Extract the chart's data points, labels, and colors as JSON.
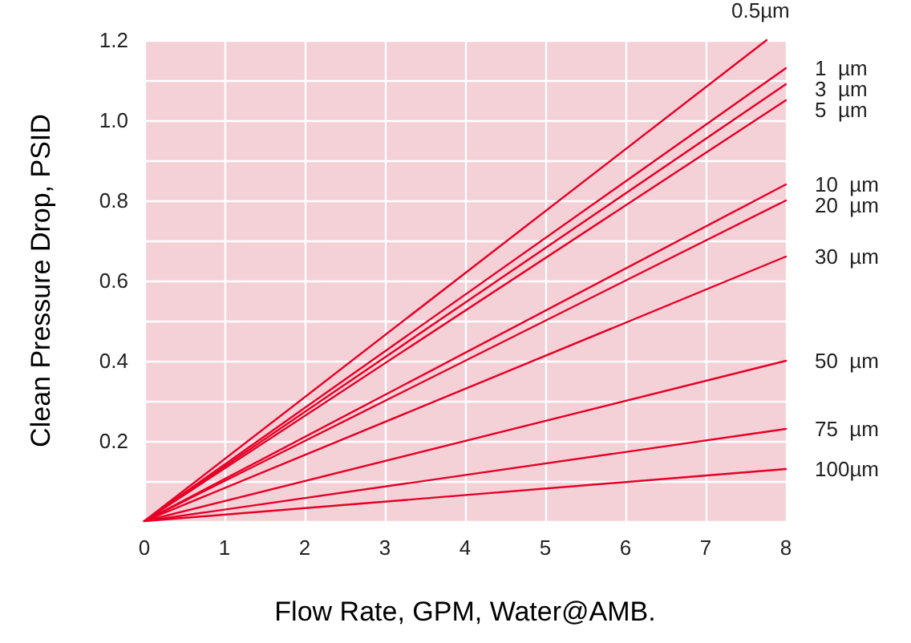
{
  "chart_data": {
    "type": "line",
    "xlabel": "Flow Rate, GPM, Water@AMB.",
    "ylabel": "Clean Pressure Drop, PSID",
    "x": [
      0,
      8
    ],
    "xlim": [
      0,
      8
    ],
    "xticks": [
      0,
      1,
      2,
      3,
      4,
      5,
      6,
      7,
      8
    ],
    "ylim": [
      0,
      1.2
    ],
    "yticks": [
      {
        "value": 0,
        "label": null
      },
      {
        "value": 0.1,
        "label": null
      },
      0.2,
      {
        "value": 0.3,
        "label": null
      },
      0.4,
      {
        "value": 0.5,
        "label": null
      },
      0.6,
      {
        "value": 0.7,
        "label": null
      },
      0.8,
      {
        "value": 0.9,
        "label": null
      },
      {
        "value": 1.0,
        "label": "1.0"
      },
      {
        "value": 1.1,
        "label": null
      },
      1.2
    ],
    "grid": true,
    "legend": false,
    "marker": "none",
    "line_style": "solid",
    "series": [
      {
        "name": "0.5µm",
        "color": "#e60026",
        "x": [
          0,
          7.76
        ],
        "values": [
          0,
          1.2
        ]
      },
      {
        "name": "1  µm",
        "color": "#e60026",
        "values": [
          0,
          1.13
        ]
      },
      {
        "name": "3  µm",
        "color": "#e60026",
        "values": [
          0,
          1.09
        ]
      },
      {
        "name": "5  µm",
        "color": "#e60026",
        "values": [
          0,
          1.05
        ]
      },
      {
        "name": "10  µm",
        "color": "#e60026",
        "values": [
          0,
          0.84
        ]
      },
      {
        "name": "20  µm",
        "color": "#e60026",
        "values": [
          0,
          0.8
        ]
      },
      {
        "name": "30  µm",
        "color": "#e60026",
        "values": [
          0,
          0.66
        ]
      },
      {
        "name": "50  µm",
        "color": "#e60026",
        "values": [
          0,
          0.4
        ]
      },
      {
        "name": "75  µm",
        "color": "#e60026",
        "values": [
          0,
          0.23
        ]
      },
      {
        "name": "100µm",
        "color": "#e60026",
        "values": [
          0,
          0.13
        ]
      }
    ]
  }
}
